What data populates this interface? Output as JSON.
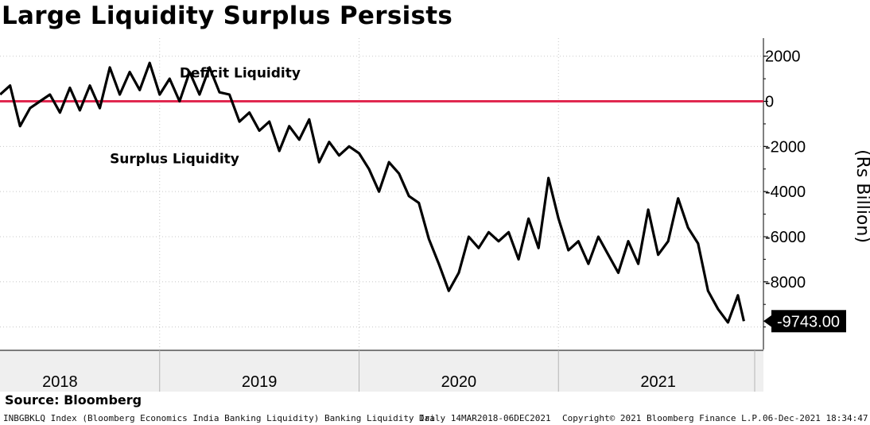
{
  "title": "Large Liquidity Surplus Persists",
  "source": "Source: Bloomberg",
  "footer": {
    "ticker": "INBGBKLQ Index (Bloomberg Economics India Banking Liquidity) Banking Liquidity Ira",
    "period": "Daily 14MAR2018-06DEC2021",
    "copyright": "Copyright© 2021 Bloomberg Finance L.P.",
    "timestamp": "06-Dec-2021 18:34:47"
  },
  "chart_data": {
    "type": "line",
    "title": "Large Liquidity Surplus Persists",
    "ylabel": "(Rs Billion)",
    "ylim": [
      -11000,
      2800
    ],
    "yticks": [
      2000,
      0,
      -2000,
      -4000,
      -6000,
      -8000
    ],
    "ytick_labels": [
      "2000",
      "0",
      "-2000",
      "-4000",
      "-6000",
      "-8000"
    ],
    "xlim": [
      2018.0,
      2022.0
    ],
    "x_categories": [
      "2018",
      "2019",
      "2020",
      "2021"
    ],
    "reference_line": {
      "value": 0,
      "color": "#e0284f"
    },
    "annotations": [
      {
        "text": "Deficit Liquidity",
        "x": 2019.1,
        "y": 1050
      },
      {
        "text": "Surplus Liquidity",
        "x": 2018.75,
        "y": -2750
      }
    ],
    "last_value_label": "-9743.00",
    "series": [
      {
        "name": "Banking Liquidity",
        "color": "#000000",
        "x": [
          2018.2,
          2018.25,
          2018.3,
          2018.35,
          2018.4,
          2018.45,
          2018.5,
          2018.55,
          2018.6,
          2018.65,
          2018.7,
          2018.75,
          2018.8,
          2018.85,
          2018.9,
          2018.95,
          2019.0,
          2019.05,
          2019.1,
          2019.15,
          2019.2,
          2019.25,
          2019.3,
          2019.35,
          2019.4,
          2019.45,
          2019.5,
          2019.55,
          2019.6,
          2019.65,
          2019.7,
          2019.75,
          2019.8,
          2019.85,
          2019.9,
          2019.95,
          2020.0,
          2020.05,
          2020.1,
          2020.15,
          2020.2,
          2020.25,
          2020.3,
          2020.35,
          2020.4,
          2020.45,
          2020.5,
          2020.55,
          2020.6,
          2020.65,
          2020.7,
          2020.75,
          2020.8,
          2020.85,
          2020.9,
          2020.95,
          2021.0,
          2021.05,
          2021.1,
          2021.15,
          2021.2,
          2021.25,
          2021.3,
          2021.35,
          2021.4,
          2021.45,
          2021.5,
          2021.55,
          2021.6,
          2021.65,
          2021.7,
          2021.75,
          2021.8,
          2021.85,
          2021.9,
          2021.93
        ],
        "values": [
          300,
          700,
          -1100,
          -300,
          0,
          300,
          -500,
          600,
          -400,
          700,
          -300,
          1500,
          300,
          1300,
          500,
          1700,
          300,
          1000,
          0,
          1300,
          300,
          1500,
          400,
          300,
          -900,
          -500,
          -1300,
          -900,
          -2200,
          -1100,
          -1700,
          -800,
          -2700,
          -1800,
          -2400,
          -2000,
          -2300,
          -3000,
          -4000,
          -2700,
          -3200,
          -4200,
          -4500,
          -6100,
          -7200,
          -8400,
          -7600,
          -6000,
          -6500,
          -5800,
          -6200,
          -5800,
          -7000,
          -5200,
          -6500,
          -3400,
          -5200,
          -6600,
          -6200,
          -7200,
          -6000,
          -6800,
          -7600,
          -6200,
          -7200,
          -4800,
          -6800,
          -6200,
          -4300,
          -5600,
          -6300,
          -8400,
          -9200,
          -9800,
          -8600,
          -9743
        ]
      }
    ]
  }
}
